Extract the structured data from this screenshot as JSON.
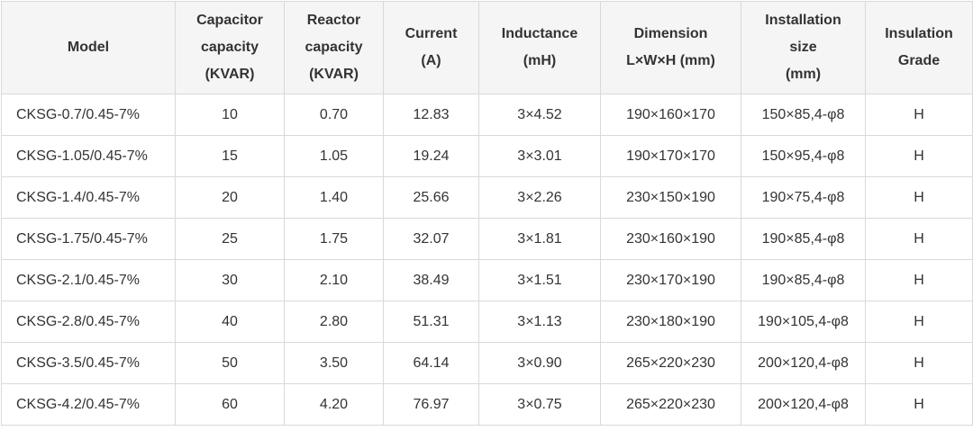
{
  "table": {
    "headers": [
      "Model",
      "Capacitor\ncapacity\n(KVAR)",
      "Reactor\ncapacity\n(KVAR)",
      "Current\n(A)",
      "Inductance\n(mH)",
      "Dimension\nL×W×H (mm)",
      "Installation\nsize\n(mm)",
      "Insulation\nGrade"
    ],
    "rows": [
      [
        "CKSG-0.7/0.45-7%",
        "10",
        "0.70",
        "12.83",
        "3×4.52",
        "190×160×170",
        "150×85,4-φ8",
        "H"
      ],
      [
        "CKSG-1.05/0.45-7%",
        "15",
        "1.05",
        "19.24",
        "3×3.01",
        "190×170×170",
        "150×95,4-φ8",
        "H"
      ],
      [
        "CKSG-1.4/0.45-7%",
        "20",
        "1.40",
        "25.66",
        "3×2.26",
        "230×150×190",
        "190×75,4-φ8",
        "H"
      ],
      [
        "CKSG-1.75/0.45-7%",
        "25",
        "1.75",
        "32.07",
        "3×1.81",
        "230×160×190",
        "190×85,4-φ8",
        "H"
      ],
      [
        "CKSG-2.1/0.45-7%",
        "30",
        "2.10",
        "38.49",
        "3×1.51",
        "230×170×190",
        "190×85,4-φ8",
        "H"
      ],
      [
        "CKSG-2.8/0.45-7%",
        "40",
        "2.80",
        "51.31",
        "3×1.13",
        "230×180×190",
        "190×105,4-φ8",
        "H"
      ],
      [
        "CKSG-3.5/0.45-7%",
        "50",
        "3.50",
        "64.14",
        "3×0.90",
        "265×220×230",
        "200×120,4-φ8",
        "H"
      ],
      [
        "CKSG-4.2/0.45-7%",
        "60",
        "4.20",
        "76.97",
        "3×0.75",
        "265×220×230",
        "200×120,4-φ8",
        "H"
      ]
    ]
  }
}
